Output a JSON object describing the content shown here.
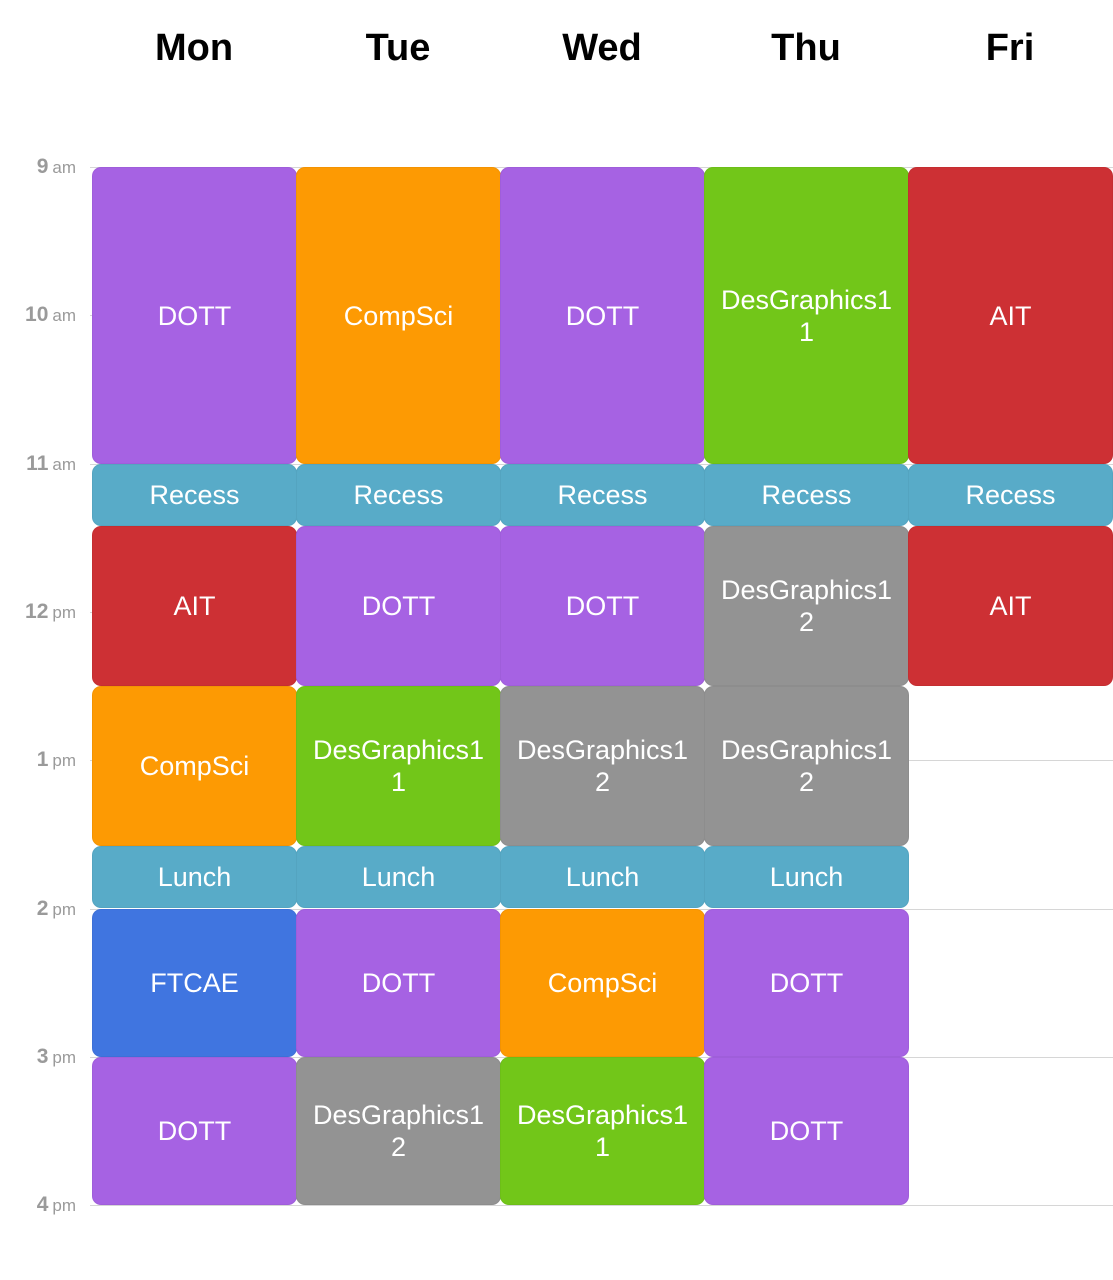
{
  "days": [
    "Mon",
    "Tue",
    "Wed",
    "Thu",
    "Fri"
  ],
  "hours": [
    {
      "num": "9",
      "ampm": "am"
    },
    {
      "num": "10",
      "ampm": "am"
    },
    {
      "num": "11",
      "ampm": "am"
    },
    {
      "num": "12",
      "ampm": "pm"
    },
    {
      "num": "1",
      "ampm": "pm"
    },
    {
      "num": "2",
      "ampm": "pm"
    },
    {
      "num": "3",
      "ampm": "pm"
    },
    {
      "num": "4",
      "ampm": "pm"
    }
  ],
  "colors": {
    "purple": "#a662e3",
    "orange": "#fd9a03",
    "green": "#72c619",
    "red": "#cd3034",
    "teal": "#58abc8",
    "gray": "#939393",
    "blue": "#4075e0"
  },
  "events": [
    {
      "day": 0,
      "start": 0,
      "end": 2,
      "label": "DOTT",
      "color": "purple"
    },
    {
      "day": 0,
      "start": 2,
      "end": 2.42,
      "label": "Recess",
      "color": "teal"
    },
    {
      "day": 0,
      "start": 2.42,
      "end": 3.5,
      "label": "AIT",
      "color": "red"
    },
    {
      "day": 0,
      "start": 3.5,
      "end": 4.58,
      "label": "CompSci",
      "color": "orange"
    },
    {
      "day": 0,
      "start": 4.58,
      "end": 5,
      "label": "Lunch",
      "color": "teal"
    },
    {
      "day": 0,
      "start": 5,
      "end": 6,
      "label": "FTCAE",
      "color": "blue"
    },
    {
      "day": 0,
      "start": 6,
      "end": 7,
      "label": "DOTT",
      "color": "purple"
    },
    {
      "day": 1,
      "start": 0,
      "end": 2,
      "label": "CompSci",
      "color": "orange"
    },
    {
      "day": 1,
      "start": 2,
      "end": 2.42,
      "label": "Recess",
      "color": "teal"
    },
    {
      "day": 1,
      "start": 2.42,
      "end": 3.5,
      "label": "DOTT",
      "color": "purple"
    },
    {
      "day": 1,
      "start": 3.5,
      "end": 4.58,
      "label": "DesGraphics1\n1",
      "color": "green"
    },
    {
      "day": 1,
      "start": 4.58,
      "end": 5,
      "label": "Lunch",
      "color": "teal"
    },
    {
      "day": 1,
      "start": 5,
      "end": 6,
      "label": "DOTT",
      "color": "purple"
    },
    {
      "day": 1,
      "start": 6,
      "end": 7,
      "label": "DesGraphics1\n2",
      "color": "gray"
    },
    {
      "day": 2,
      "start": 0,
      "end": 2,
      "label": "DOTT",
      "color": "purple"
    },
    {
      "day": 2,
      "start": 2,
      "end": 2.42,
      "label": "Recess",
      "color": "teal"
    },
    {
      "day": 2,
      "start": 2.42,
      "end": 3.5,
      "label": "DOTT",
      "color": "purple"
    },
    {
      "day": 2,
      "start": 3.5,
      "end": 4.58,
      "label": "DesGraphics1\n2",
      "color": "gray"
    },
    {
      "day": 2,
      "start": 4.58,
      "end": 5,
      "label": "Lunch",
      "color": "teal"
    },
    {
      "day": 2,
      "start": 5,
      "end": 6,
      "label": "CompSci",
      "color": "orange"
    },
    {
      "day": 2,
      "start": 6,
      "end": 7,
      "label": "DesGraphics1\n1",
      "color": "green"
    },
    {
      "day": 3,
      "start": 0,
      "end": 2,
      "label": "DesGraphics1\n1",
      "color": "green"
    },
    {
      "day": 3,
      "start": 2,
      "end": 2.42,
      "label": "Recess",
      "color": "teal"
    },
    {
      "day": 3,
      "start": 2.42,
      "end": 3.5,
      "label": "DesGraphics1\n2",
      "color": "gray"
    },
    {
      "day": 3,
      "start": 3.5,
      "end": 4.58,
      "label": "DesGraphics1\n2",
      "color": "gray"
    },
    {
      "day": 3,
      "start": 4.58,
      "end": 5,
      "label": "Lunch",
      "color": "teal"
    },
    {
      "day": 3,
      "start": 5,
      "end": 6,
      "label": "DOTT",
      "color": "purple"
    },
    {
      "day": 3,
      "start": 6,
      "end": 7,
      "label": "DOTT",
      "color": "purple"
    },
    {
      "day": 4,
      "start": 0,
      "end": 2,
      "label": "AIT",
      "color": "red"
    },
    {
      "day": 4,
      "start": 2,
      "end": 2.42,
      "label": "Recess",
      "color": "teal"
    },
    {
      "day": 4,
      "start": 2.42,
      "end": 3.5,
      "label": "AIT",
      "color": "red"
    }
  ]
}
